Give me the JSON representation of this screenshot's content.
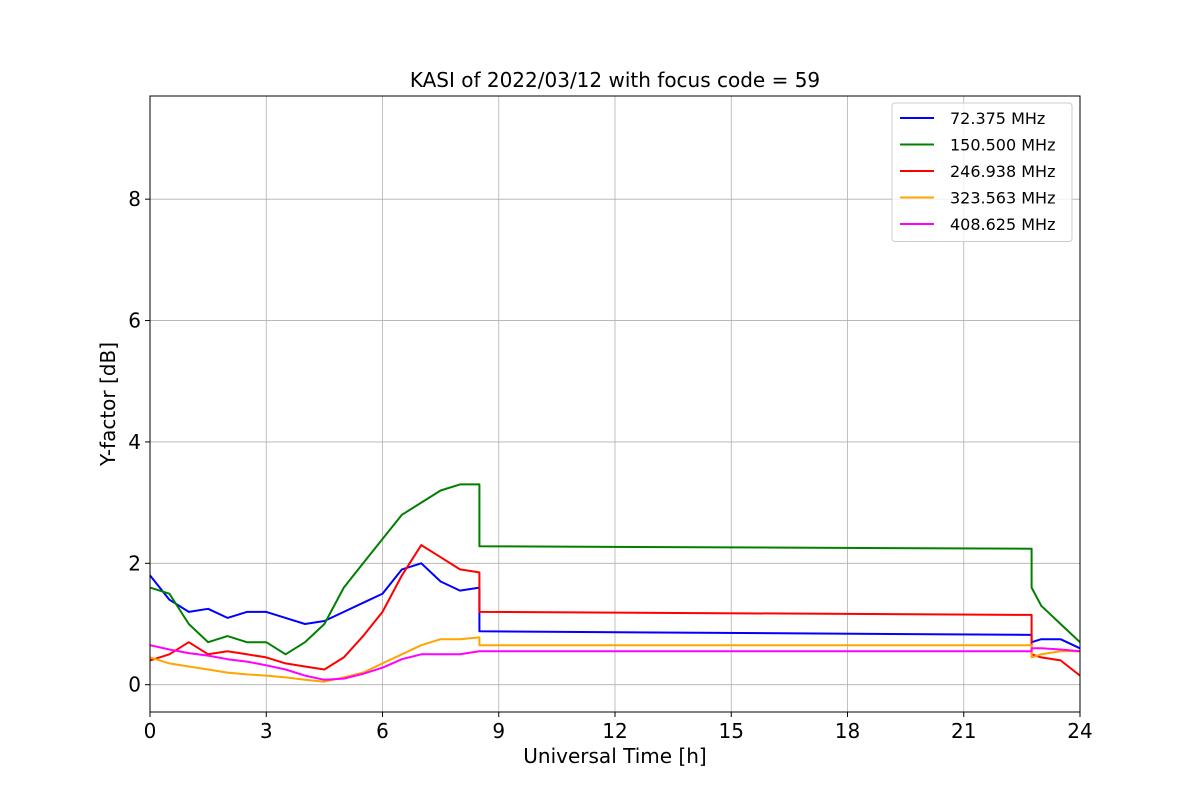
{
  "chart_data": {
    "type": "line",
    "title": "KASI of 2022/03/12 with focus code = 59",
    "xlabel": "Universal Time [h]",
    "ylabel": "Y-factor [dB]",
    "xlim": [
      0,
      24
    ],
    "ylim": [
      -0.45,
      9.7
    ],
    "xticks": [
      0,
      3,
      6,
      9,
      12,
      15,
      18,
      21,
      24
    ],
    "xtick_labels": [
      "0",
      "3",
      "6",
      "9",
      "12",
      "15",
      "18",
      "21",
      "24"
    ],
    "yticks": [
      0,
      2,
      4,
      6,
      8
    ],
    "ytick_labels": [
      "0",
      "2",
      "4",
      "6",
      "8"
    ],
    "grid": true,
    "legend_position": "top-right",
    "series": [
      {
        "name": " 72.375 MHz",
        "color": "#0000ff",
        "x": [
          0,
          0.5,
          1,
          1.5,
          2,
          2.5,
          3,
          3.5,
          4,
          4.5,
          5,
          5.5,
          6,
          6.5,
          7,
          7.5,
          8,
          8.5,
          8.5,
          22.75,
          22.75,
          23,
          23.5,
          24
        ],
        "y": [
          1.8,
          1.4,
          1.2,
          1.25,
          1.1,
          1.2,
          1.2,
          1.1,
          1.0,
          1.05,
          1.2,
          1.35,
          1.5,
          1.9,
          2.0,
          1.7,
          1.55,
          1.6,
          0.88,
          0.82,
          0.7,
          0.75,
          0.75,
          0.6
        ]
      },
      {
        "name": "150.500 MHz",
        "color": "#008000",
        "x": [
          0,
          0.5,
          1,
          1.5,
          2,
          2.5,
          3,
          3.5,
          4,
          4.5,
          5,
          5.5,
          6,
          6.5,
          7,
          7.5,
          8,
          8.5,
          8.5,
          22.75,
          22.75,
          23,
          23.5,
          24
        ],
        "y": [
          1.6,
          1.5,
          1.0,
          0.7,
          0.8,
          0.7,
          0.7,
          0.5,
          0.7,
          1.0,
          1.6,
          2.0,
          2.4,
          2.8,
          3.0,
          3.2,
          3.3,
          3.3,
          2.28,
          2.24,
          1.6,
          1.3,
          1.0,
          0.7
        ]
      },
      {
        "name": "246.938 MHz",
        "color": "#ff0000",
        "x": [
          0,
          0.5,
          1,
          1.5,
          2,
          2.5,
          3,
          3.5,
          4,
          4.5,
          5,
          5.5,
          6,
          6.5,
          7,
          7.5,
          8,
          8.5,
          8.5,
          22.75,
          22.75,
          23,
          23.5,
          24
        ],
        "y": [
          0.4,
          0.5,
          0.7,
          0.5,
          0.55,
          0.5,
          0.45,
          0.35,
          0.3,
          0.25,
          0.45,
          0.8,
          1.2,
          1.8,
          2.3,
          2.1,
          1.9,
          1.85,
          1.2,
          1.15,
          0.5,
          0.45,
          0.4,
          0.15
        ]
      },
      {
        "name": "323.563 MHz",
        "color": "#ffa500",
        "x": [
          0,
          0.5,
          1,
          1.5,
          2,
          2.5,
          3,
          3.5,
          4,
          4.5,
          5,
          5.5,
          6,
          6.5,
          7,
          7.5,
          8,
          8.5,
          8.5,
          22.75,
          22.75,
          23,
          23.5,
          24
        ],
        "y": [
          0.45,
          0.35,
          0.3,
          0.25,
          0.2,
          0.17,
          0.15,
          0.12,
          0.08,
          0.05,
          0.12,
          0.2,
          0.35,
          0.5,
          0.65,
          0.75,
          0.75,
          0.78,
          0.65,
          0.65,
          0.45,
          0.5,
          0.55,
          0.55
        ]
      },
      {
        "name": "408.625 MHz",
        "color": "#ff00ff",
        "x": [
          0,
          0.5,
          1,
          1.5,
          2,
          2.5,
          3,
          3.5,
          4,
          4.5,
          5,
          5.5,
          6,
          6.5,
          7,
          7.5,
          8,
          8.5,
          8.5,
          22.75,
          22.75,
          23,
          23.5,
          24
        ],
        "y": [
          0.65,
          0.58,
          0.52,
          0.48,
          0.42,
          0.38,
          0.32,
          0.25,
          0.15,
          0.08,
          0.1,
          0.18,
          0.28,
          0.42,
          0.5,
          0.5,
          0.5,
          0.55,
          0.55,
          0.55,
          0.6,
          0.6,
          0.58,
          0.55
        ]
      }
    ]
  }
}
